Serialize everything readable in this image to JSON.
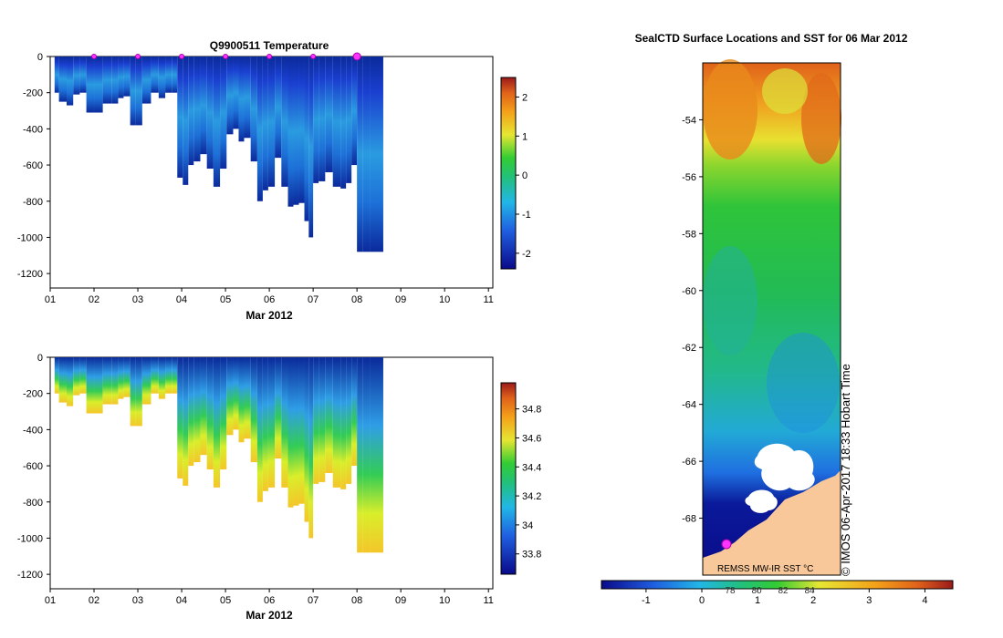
{
  "chart_data": [
    {
      "type": "heatmap",
      "title": "Q9900511  Temperature",
      "xlabel": "Mar 2012",
      "x_ticks": [
        "01",
        "02",
        "03",
        "04",
        "05",
        "06",
        "07",
        "08",
        "09",
        "10",
        "11"
      ],
      "xlim": [
        1,
        11.1
      ],
      "ylim": [
        -1280,
        0
      ],
      "y_ticks": [
        0,
        -200,
        -400,
        -600,
        -800,
        -1000,
        -1200
      ],
      "colorbar": {
        "ticks": [
          2,
          1,
          0,
          -1,
          -2
        ],
        "range": [
          -2.4,
          2.5
        ]
      },
      "profile_markers_day": [
        2,
        3,
        4,
        5,
        6,
        7,
        8
      ],
      "series": [
        {
          "name": "profile_max_depth_m",
          "x": [
            1.1,
            1.3,
            1.45,
            1.6,
            1.75,
            1.9,
            2.1,
            2.3,
            2.5,
            2.6,
            2.75,
            2.9,
            3.0,
            3.2,
            3.4,
            3.55,
            3.7,
            3.85,
            3.95,
            4.1,
            4.2,
            4.35,
            4.5,
            4.65,
            4.8,
            4.95,
            5.1,
            5.25,
            5.35,
            5.5,
            5.65,
            5.8,
            5.9,
            6.05,
            6.2,
            6.35,
            6.5,
            6.6,
            6.75,
            6.85,
            6.95,
            7.05,
            7.2,
            7.35,
            7.55,
            7.7,
            7.8,
            7.95,
            8.05,
            8.2,
            8.4
          ],
          "values": [
            -200,
            -250,
            -270,
            -210,
            -200,
            -310,
            -310,
            -260,
            -260,
            -230,
            -220,
            -380,
            -380,
            -260,
            -200,
            -230,
            -200,
            -200,
            -670,
            -710,
            -600,
            -580,
            -540,
            -620,
            -720,
            -620,
            -430,
            -400,
            -470,
            -450,
            -580,
            -800,
            -740,
            -720,
            -560,
            -720,
            -830,
            -820,
            -810,
            -910,
            -1000,
            -700,
            -690,
            -640,
            -720,
            -730,
            -700,
            -600,
            -1080,
            -1080,
            -1080
          ]
        }
      ]
    },
    {
      "type": "heatmap",
      "title": "",
      "xlabel": "Mar 2012",
      "x_ticks": [
        "01",
        "02",
        "03",
        "04",
        "05",
        "06",
        "07",
        "08",
        "09",
        "10",
        "11"
      ],
      "xlim": [
        1,
        11.1
      ],
      "ylim": [
        -1280,
        0
      ],
      "y_ticks": [
        0,
        -200,
        -400,
        -600,
        -800,
        -1000,
        -1200
      ],
      "colorbar": {
        "ticks": [
          34.8,
          34.6,
          34.4,
          34.2,
          34.0,
          33.8
        ],
        "range": [
          33.66,
          34.98
        ]
      }
    },
    {
      "type": "heatmap",
      "title": "SealCTD Surface Locations and SST for 06 Mar 2012",
      "ylabel": "",
      "y_ticks": [
        -54,
        -56,
        -58,
        -60,
        -62,
        -64,
        -66,
        -68
      ],
      "ylim": [
        -70,
        -52
      ],
      "colorbar": {
        "ticks": [
          -1,
          0,
          1,
          2,
          3,
          4
        ],
        "secondary_ticks": [
          78,
          80,
          82,
          84
        ],
        "range": [
          -1.8,
          4.5
        ]
      },
      "caption": "REMSS MW-IR SST °C",
      "credit": "© IMOS 06-Apr-2017 18:33 Hobart Time"
    }
  ]
}
